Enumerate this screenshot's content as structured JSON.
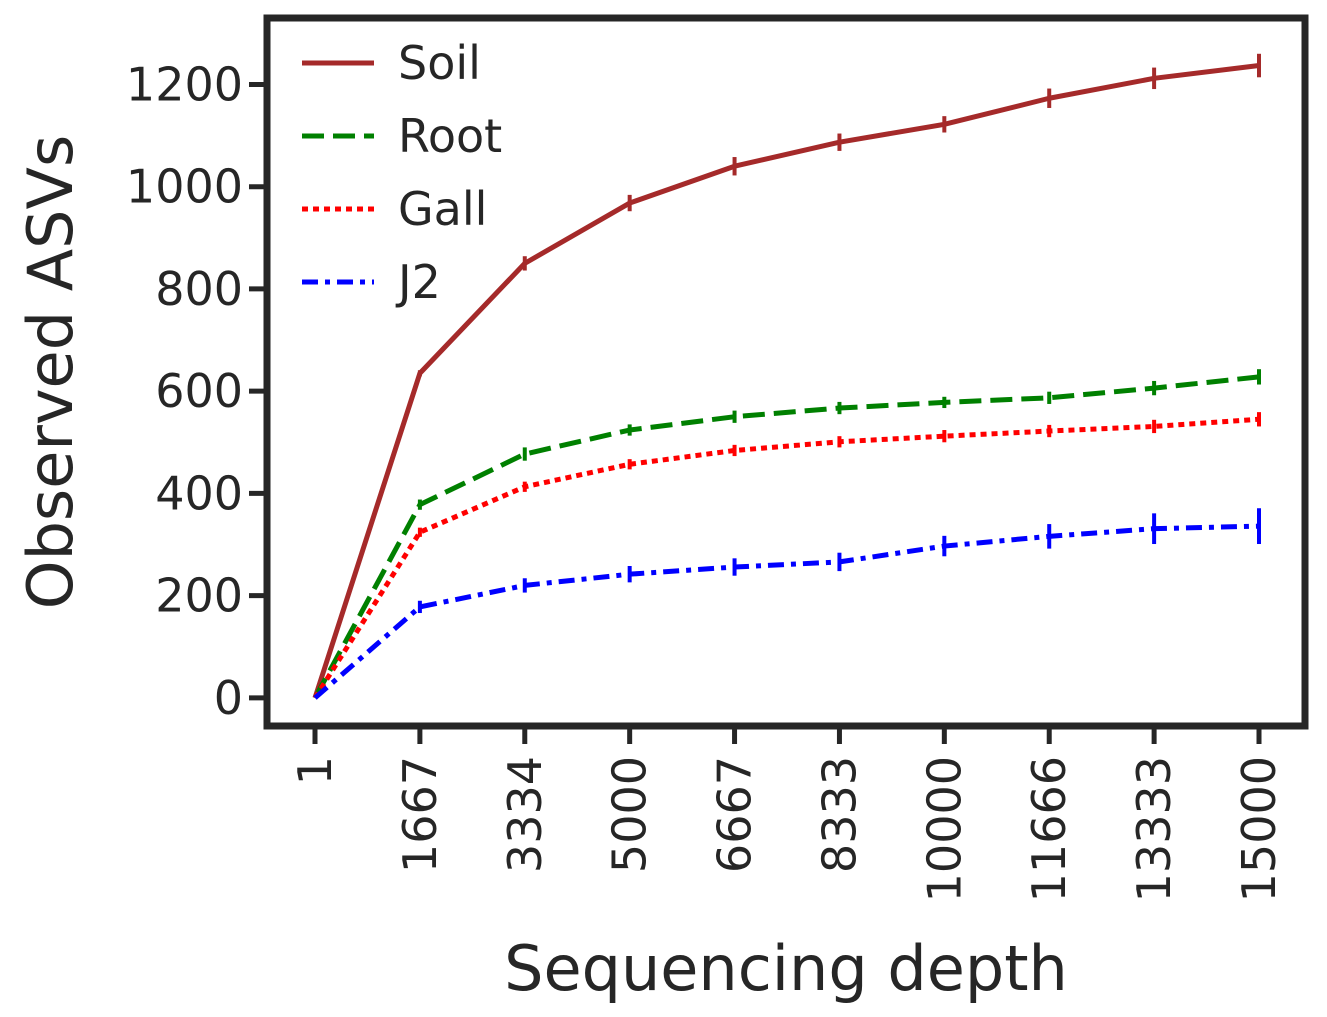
{
  "chart_data": {
    "type": "line",
    "xlabel": "Sequencing depth",
    "ylabel": "Observed ASVs",
    "x_tick_labels": [
      "1",
      "1667",
      "3334",
      "5000",
      "6667",
      "8333",
      "10000",
      "11666",
      "13333",
      "15000"
    ],
    "y_ticks": [
      0,
      200,
      400,
      600,
      800,
      1000,
      1200
    ],
    "ylim": [
      -55,
      1330
    ],
    "grid": false,
    "legend_position": "top-left",
    "series": [
      {
        "name": "Soil",
        "color": "#a52a2a",
        "style": "solid",
        "values": [
          0,
          635,
          850,
          968,
          1040,
          1087,
          1122,
          1173,
          1212,
          1237
        ],
        "errors": [
          0,
          6,
          14,
          16,
          18,
          17,
          16,
          19,
          21,
          23
        ]
      },
      {
        "name": "Root",
        "color": "#008000",
        "style": "dashed",
        "values": [
          0,
          378,
          477,
          524,
          550,
          567,
          578,
          587,
          606,
          628
        ],
        "errors": [
          0,
          10,
          13,
          11,
          12,
          12,
          11,
          12,
          14,
          15
        ]
      },
      {
        "name": "Gall",
        "color": "#ff0000",
        "style": "dotted",
        "values": [
          0,
          324,
          413,
          457,
          484,
          501,
          512,
          522,
          531,
          545
        ],
        "errors": [
          0,
          9,
          10,
          10,
          11,
          11,
          12,
          12,
          13,
          14
        ]
      },
      {
        "name": "J2",
        "color": "#0000ff",
        "style": "dashdot",
        "values": [
          0,
          178,
          220,
          242,
          256,
          266,
          297,
          316,
          331,
          336
        ],
        "errors": [
          0,
          12,
          14,
          16,
          17,
          18,
          20,
          24,
          30,
          35
        ]
      }
    ]
  }
}
